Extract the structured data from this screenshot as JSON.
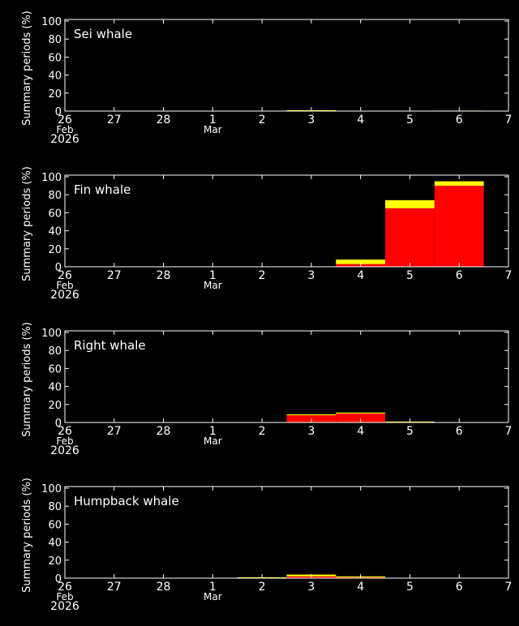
{
  "colors": {
    "background": "#000000",
    "axis": "#ffffff",
    "red": "#ff0000",
    "yellow": "#ffff00"
  },
  "ylabel": "Summary periods (%)",
  "yticks": [
    "0",
    "20",
    "40",
    "60",
    "80",
    "100"
  ],
  "xticks": [
    {
      "day": "26",
      "month": "Feb",
      "year": "2026"
    },
    {
      "day": "27"
    },
    {
      "day": "28"
    },
    {
      "day": "1",
      "month": "Mar"
    },
    {
      "day": "2"
    },
    {
      "day": "3"
    },
    {
      "day": "4"
    },
    {
      "day": "5"
    },
    {
      "day": "6"
    },
    {
      "day": "7"
    }
  ],
  "chart_data": [
    {
      "type": "bar",
      "stacked": true,
      "title": "Sei whale",
      "categories": [
        "2026-03-03",
        "2026-03-06"
      ],
      "series": [
        {
          "color": "#ff0000",
          "values": [
            0,
            0
          ]
        },
        {
          "color": "#ffff00",
          "values": [
            1,
            0.5
          ]
        }
      ],
      "ylim": [
        0,
        100
      ],
      "xlim": [
        "2026-02-26",
        "2026-03-07"
      ]
    },
    {
      "type": "bar",
      "stacked": true,
      "title": "Fin whale",
      "categories": [
        "2026-03-04",
        "2026-03-05",
        "2026-03-06"
      ],
      "series": [
        {
          "color": "#ff0000",
          "values": [
            3,
            65,
            90
          ]
        },
        {
          "color": "#ffff00",
          "values": [
            5,
            9,
            5
          ]
        }
      ],
      "ylim": [
        0,
        100
      ],
      "xlim": [
        "2026-02-26",
        "2026-03-07"
      ]
    },
    {
      "type": "bar",
      "stacked": true,
      "title": "Right whale",
      "categories": [
        "2026-03-03",
        "2026-03-04",
        "2026-03-05"
      ],
      "series": [
        {
          "color": "#ff0000",
          "values": [
            8,
            10,
            0
          ]
        },
        {
          "color": "#ffff00",
          "values": [
            1,
            1,
            1
          ]
        }
      ],
      "ylim": [
        0,
        100
      ],
      "xlim": [
        "2026-02-26",
        "2026-03-07"
      ]
    },
    {
      "type": "bar",
      "stacked": true,
      "title": "Humpback whale",
      "categories": [
        "2026-03-02",
        "2026-03-03",
        "2026-03-04"
      ],
      "series": [
        {
          "color": "#ff0000",
          "values": [
            0,
            2,
            1
          ]
        },
        {
          "color": "#ffff00",
          "values": [
            1,
            2,
            1
          ]
        }
      ],
      "ylim": [
        0,
        100
      ],
      "xlim": [
        "2026-02-26",
        "2026-03-07"
      ]
    }
  ]
}
